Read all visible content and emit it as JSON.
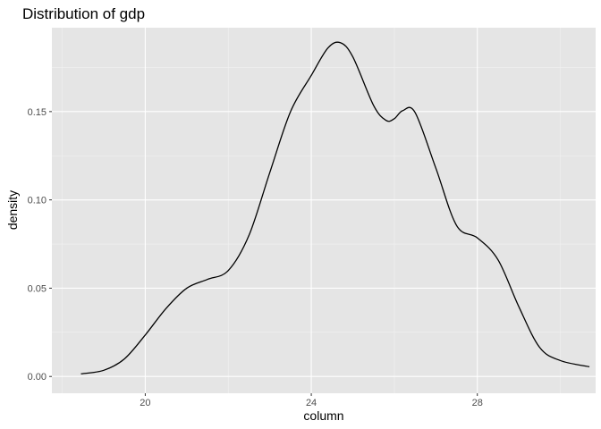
{
  "chart_data": {
    "type": "area",
    "title": "Distribution of gdp",
    "xlabel": "column",
    "ylabel": "density",
    "xlim": [
      17.75,
      30.85
    ],
    "ylim": [
      -0.0095,
      0.1975
    ],
    "x_ticks": [
      {
        "value": 20,
        "label": "20"
      },
      {
        "value": 24,
        "label": "24"
      },
      {
        "value": 28,
        "label": "28"
      }
    ],
    "y_ticks": [
      {
        "value": 0.0,
        "label": "0.00"
      },
      {
        "value": 0.05,
        "label": "0.05"
      },
      {
        "value": 0.1,
        "label": "0.10"
      },
      {
        "value": 0.15,
        "label": "0.15"
      }
    ],
    "x_minor": [
      18,
      22,
      26,
      30
    ],
    "y_minor": [
      0.025,
      0.075,
      0.125,
      0.175
    ],
    "grid": true,
    "series": [
      {
        "color": "#000000",
        "points": [
          [
            18.45,
            0.0015
          ],
          [
            19.0,
            0.0035
          ],
          [
            19.5,
            0.01
          ],
          [
            20.0,
            0.0235
          ],
          [
            20.5,
            0.0385
          ],
          [
            21.0,
            0.05
          ],
          [
            21.5,
            0.055
          ],
          [
            22.0,
            0.06
          ],
          [
            22.5,
            0.08
          ],
          [
            23.0,
            0.1155
          ],
          [
            23.5,
            0.15
          ],
          [
            24.0,
            0.1705
          ],
          [
            24.4,
            0.186
          ],
          [
            24.7,
            0.189
          ],
          [
            25.0,
            0.181
          ],
          [
            25.5,
            0.1535
          ],
          [
            25.8,
            0.145
          ],
          [
            26.0,
            0.146
          ],
          [
            26.2,
            0.1505
          ],
          [
            26.5,
            0.1495
          ],
          [
            27.0,
            0.118
          ],
          [
            27.5,
            0.0855
          ],
          [
            28.0,
            0.0785
          ],
          [
            28.5,
            0.066
          ],
          [
            29.0,
            0.0395
          ],
          [
            29.5,
            0.0165
          ],
          [
            30.0,
            0.009
          ],
          [
            30.7,
            0.0055
          ]
        ]
      }
    ],
    "colors": {
      "panel_bg": "#e5e5e5",
      "grid_major": "#ffffff",
      "grid_minor": "#f2f2f2",
      "line": "#000000"
    }
  }
}
